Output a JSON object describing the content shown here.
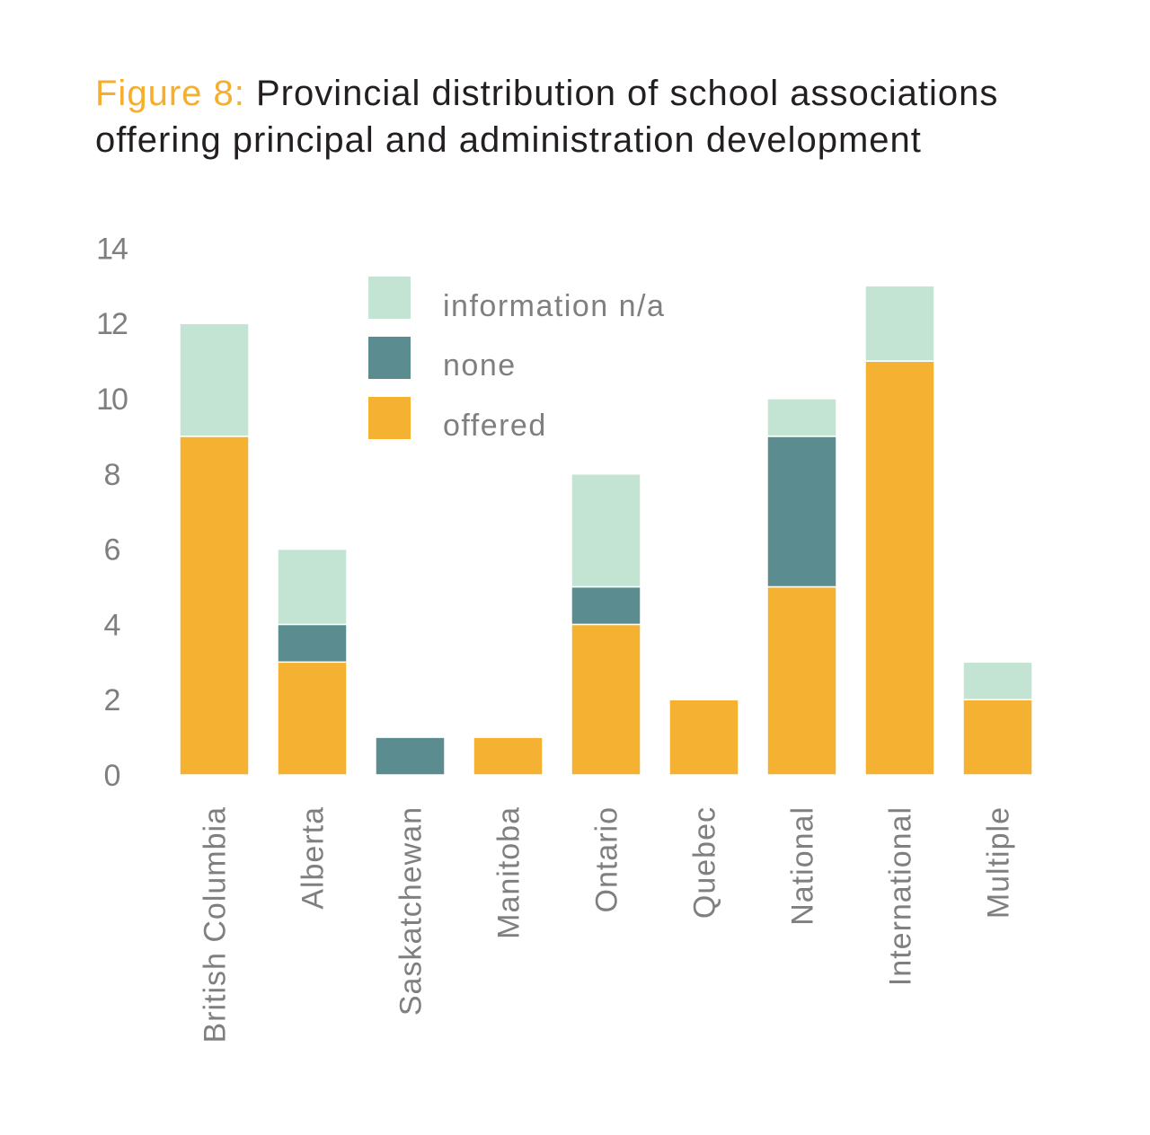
{
  "chart_data": {
    "type": "bar",
    "stacked": true,
    "title_prefix": "Figure 8:",
    "title": "Provincial distribution of school associations offering principal and administration development",
    "xlabel": "",
    "ylabel": "",
    "ylim": [
      0,
      14
    ],
    "yticks": [
      "0",
      "2",
      "4",
      "6",
      "8",
      "10",
      "12",
      "14"
    ],
    "grid": false,
    "legend_position": "top-center",
    "categories": [
      "British Columbia",
      "Alberta",
      "Saskatchewan",
      "Manitoba",
      "Ontario",
      "Quebec",
      "National",
      "International",
      "Multiple"
    ],
    "series": [
      {
        "name": "offered",
        "color": "#f5b131",
        "values": [
          9,
          3,
          0,
          1,
          4,
          2,
          5,
          11,
          2
        ]
      },
      {
        "name": "none",
        "color": "#5b8c8f",
        "values": [
          0,
          1,
          1,
          0,
          1,
          0,
          4,
          0,
          0
        ]
      },
      {
        "name": "information n/a",
        "color": "#c3e4d2",
        "values": [
          3,
          2,
          0,
          0,
          3,
          0,
          1,
          2,
          1
        ]
      }
    ],
    "legend_order": [
      "information n/a",
      "none",
      "offered"
    ]
  }
}
